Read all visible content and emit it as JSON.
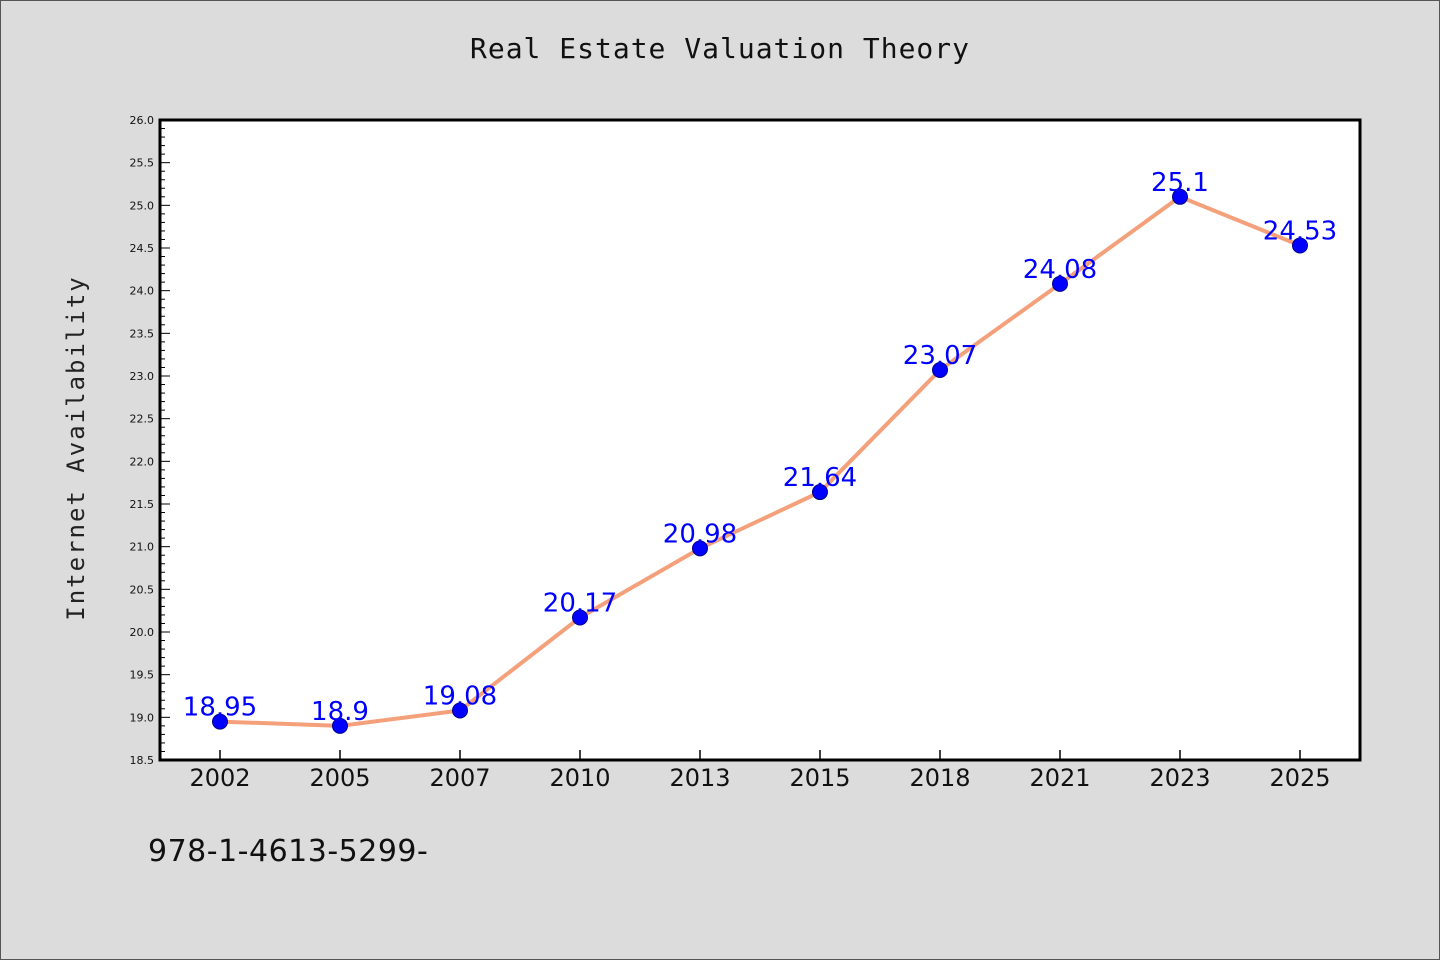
{
  "footer_text": "978-1-4613-5299-",
  "chart_data": {
    "type": "line",
    "title": "Real Estate Valuation Theory",
    "xlabel": "",
    "ylabel": "Internet Availability",
    "categories": [
      "2002",
      "2005",
      "2007",
      "2010",
      "2013",
      "2015",
      "2018",
      "2021",
      "2023",
      "2025"
    ],
    "values": [
      18.95,
      18.9,
      19.08,
      20.17,
      20.98,
      21.64,
      23.07,
      24.08,
      25.1,
      24.53
    ],
    "data_labels": [
      "18.95",
      "18.9",
      "19.08",
      "20.17",
      "20.98",
      "21.64",
      "23.07",
      "24.08",
      "25.1",
      "24.53"
    ],
    "ylim": [
      18.5,
      26.0
    ],
    "y_ticks": [
      "18.5",
      "19.0",
      "19.5",
      "20.0",
      "20.5",
      "21.0",
      "21.5",
      "22.0",
      "22.5",
      "23.0",
      "23.5",
      "24.0",
      "24.5",
      "25.0",
      "25.5",
      "26.0"
    ],
    "grid": false,
    "legend": "none",
    "colors": {
      "line": "#f4a07a",
      "marker": "#0000ff",
      "marker_edge": "#00008b",
      "data_label": "#0000ff",
      "plot_bg": "#ffffff",
      "figure_bg": "#dcdcdc"
    }
  }
}
